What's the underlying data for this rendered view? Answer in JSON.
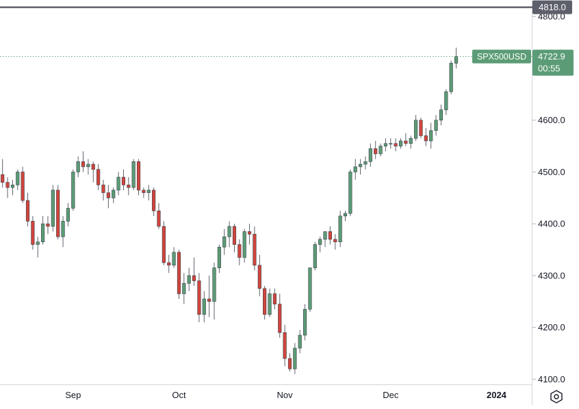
{
  "chart_data": {
    "type": "candlestick",
    "symbol": "SPX500USD",
    "last_price": "4722.9",
    "countdown": "00:55",
    "level_line": {
      "value": 4818.0,
      "label": "4818.0"
    },
    "y_ticks": [
      {
        "value": 4800,
        "label": "4800.0"
      },
      {
        "value": 4600,
        "label": "4600.0"
      },
      {
        "value": 4500,
        "label": "4500.0"
      },
      {
        "value": 4400,
        "label": "4400.0"
      },
      {
        "value": 4300,
        "label": "4300.0"
      },
      {
        "value": 4200,
        "label": "4200.0"
      },
      {
        "value": 4100,
        "label": "4100.0"
      }
    ],
    "x_ticks": [
      {
        "index": 14,
        "label": "Sep"
      },
      {
        "index": 35,
        "label": "Oct"
      },
      {
        "index": 56,
        "label": "Nov"
      },
      {
        "index": 77,
        "label": "Dec"
      },
      {
        "index": 98,
        "label": "2024"
      }
    ],
    "ylim": [
      4090,
      4832
    ],
    "x_range": [
      -0.5,
      105
    ],
    "colors": {
      "up": "#5b9c76",
      "down": "#d0453d",
      "axis_text": "#131722",
      "price_tag": "#5b9c76",
      "level": "#5d606b"
    },
    "candles": [
      [
        4495,
        4525,
        4470,
        4480
      ],
      [
        4480,
        4490,
        4450,
        4470
      ],
      [
        4470,
        4485,
        4455,
        4475
      ],
      [
        4475,
        4505,
        4465,
        4500
      ],
      [
        4500,
        4510,
        4440,
        4445
      ],
      [
        4445,
        4460,
        4395,
        4405
      ],
      [
        4405,
        4415,
        4350,
        4360
      ],
      [
        4360,
        4375,
        4335,
        4365
      ],
      [
        4365,
        4415,
        4360,
        4400
      ],
      [
        4400,
        4415,
        4380,
        4395
      ],
      [
        4395,
        4475,
        4385,
        4465
      ],
      [
        4465,
        4475,
        4370,
        4375
      ],
      [
        4375,
        4415,
        4355,
        4405
      ],
      [
        4405,
        4440,
        4395,
        4430
      ],
      [
        4430,
        4505,
        4425,
        4500
      ],
      [
        4500,
        4530,
        4490,
        4520
      ],
      [
        4520,
        4540,
        4500,
        4510
      ],
      [
        4510,
        4525,
        4495,
        4515
      ],
      [
        4515,
        4520,
        4480,
        4505
      ],
      [
        4505,
        4515,
        4465,
        4475
      ],
      [
        4475,
        4485,
        4445,
        4460
      ],
      [
        4460,
        4475,
        4430,
        4450
      ],
      [
        4450,
        4470,
        4440,
        4465
      ],
      [
        4465,
        4500,
        4455,
        4490
      ],
      [
        4490,
        4505,
        4465,
        4475
      ],
      [
        4475,
        4490,
        4455,
        4470
      ],
      [
        4470,
        4525,
        4465,
        4520
      ],
      [
        4520,
        4525,
        4455,
        4465
      ],
      [
        4465,
        4470,
        4450,
        4460
      ],
      [
        4460,
        4475,
        4445,
        4465
      ],
      [
        4465,
        4470,
        4415,
        4425
      ],
      [
        4425,
        4440,
        4390,
        4395
      ],
      [
        4395,
        4405,
        4320,
        4325
      ],
      [
        4325,
        4340,
        4305,
        4320
      ],
      [
        4320,
        4355,
        4315,
        4345
      ],
      [
        4345,
        4350,
        4255,
        4265
      ],
      [
        4265,
        4305,
        4245,
        4285
      ],
      [
        4285,
        4315,
        4270,
        4300
      ],
      [
        4300,
        4335,
        4280,
        4290
      ],
      [
        4290,
        4305,
        4210,
        4225
      ],
      [
        4225,
        4270,
        4210,
        4255
      ],
      [
        4255,
        4300,
        4220,
        4250
      ],
      [
        4250,
        4325,
        4215,
        4315
      ],
      [
        4315,
        4360,
        4305,
        4355
      ],
      [
        4355,
        4390,
        4340,
        4375
      ],
      [
        4375,
        4405,
        4355,
        4395
      ],
      [
        4395,
        4400,
        4345,
        4360
      ],
      [
        4360,
        4370,
        4320,
        4335
      ],
      [
        4335,
        4390,
        4325,
        4385
      ],
      [
        4385,
        4400,
        4360,
        4380
      ],
      [
        4380,
        4395,
        4310,
        4320
      ],
      [
        4320,
        4340,
        4260,
        4275
      ],
      [
        4275,
        4280,
        4215,
        4225
      ],
      [
        4225,
        4275,
        4220,
        4265
      ],
      [
        4265,
        4275,
        4235,
        4245
      ],
      [
        4245,
        4265,
        4180,
        4190
      ],
      [
        4190,
        4205,
        4125,
        4140
      ],
      [
        4140,
        4150,
        4115,
        4120
      ],
      [
        4120,
        4170,
        4110,
        4160
      ],
      [
        4160,
        4195,
        4150,
        4185
      ],
      [
        4185,
        4245,
        4175,
        4235
      ],
      [
        4235,
        4315,
        4230,
        4315
      ],
      [
        4315,
        4365,
        4310,
        4360
      ],
      [
        4360,
        4375,
        4345,
        4370
      ],
      [
        4370,
        4385,
        4355,
        4385
      ],
      [
        4385,
        4395,
        4360,
        4370
      ],
      [
        4370,
        4380,
        4350,
        4365
      ],
      [
        4365,
        4425,
        4355,
        4415
      ],
      [
        4415,
        4425,
        4405,
        4420
      ],
      [
        4420,
        4505,
        4415,
        4500
      ],
      [
        4500,
        4525,
        4485,
        4510
      ],
      [
        4510,
        4525,
        4495,
        4515
      ],
      [
        4515,
        4530,
        4505,
        4520
      ],
      [
        4520,
        4555,
        4510,
        4545
      ],
      [
        4545,
        4560,
        4525,
        4535
      ],
      [
        4535,
        4555,
        4530,
        4550
      ],
      [
        4550,
        4565,
        4540,
        4555
      ],
      [
        4555,
        4565,
        4545,
        4555
      ],
      [
        4555,
        4565,
        4540,
        4550
      ],
      [
        4550,
        4565,
        4545,
        4560
      ],
      [
        4560,
        4575,
        4550,
        4555
      ],
      [
        4555,
        4570,
        4545,
        4565
      ],
      [
        4565,
        4610,
        4560,
        4600
      ],
      [
        4600,
        4605,
        4565,
        4570
      ],
      [
        4570,
        4585,
        4550,
        4560
      ],
      [
        4560,
        4595,
        4545,
        4580
      ],
      [
        4580,
        4610,
        4570,
        4600
      ],
      [
        4600,
        4630,
        4590,
        4620
      ],
      [
        4620,
        4660,
        4610,
        4655
      ],
      [
        4655,
        4715,
        4650,
        4710
      ],
      [
        4710,
        4740,
        4700,
        4722.9
      ]
    ]
  }
}
